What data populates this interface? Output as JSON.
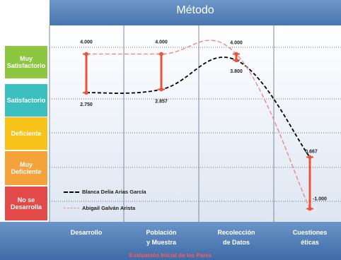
{
  "chart_data": {
    "type": "line",
    "title": "Método",
    "subtitle_bottom": "Evaluación Inicial de los Pares",
    "categories": [
      "Desarrollo",
      "Población\ny Muestra",
      "Recolección\nde Datos",
      "Cuestiones\néticas"
    ],
    "y_levels": [
      "Muy Satisfactorio",
      "Satisfactorio",
      "Deficiente",
      "Muy Deficiente",
      "No se Desarrolla"
    ],
    "ylim": [
      -1.4,
      4.7
    ],
    "series": [
      {
        "name": "Blanca Delia Arias García",
        "values": [
          2.75,
          2.857,
          3.8,
          0.667
        ]
      },
      {
        "name": "Abigail Galván Arista",
        "values": [
          4.0,
          4.0,
          4.0,
          -1.0
        ]
      }
    ],
    "data_labels": [
      {
        "category": "Desarrollo",
        "series": 1,
        "text": "4.000"
      },
      {
        "category": "Desarrollo",
        "series": 0,
        "text": "2.750"
      },
      {
        "category": "Población\ny Muestra",
        "series": 1,
        "text": "4.000"
      },
      {
        "category": "Población\ny Muestra",
        "series": 0,
        "text": "2.857"
      },
      {
        "category": "Recolección\nde Datos",
        "series": 1,
        "text": "4.000"
      },
      {
        "category": "Recolección\nde Datos",
        "series": 0,
        "text": "3.800"
      },
      {
        "category": "Cuestiones\néticas",
        "series": 0,
        "text": "0.667"
      },
      {
        "category": "Cuestiones\néticas",
        "series": 1,
        "text": "-1.000"
      }
    ],
    "grid": true
  },
  "colors": {
    "series0": "#000000",
    "series1": "#e88a8a",
    "diff_bar": "#e8553a",
    "muy_satisfactorio": "#8dc63f",
    "satisfactorio": "#3bbfbf",
    "deficiente": "#f7c21a",
    "muy_deficiente": "#f4a23a",
    "no_se_desarrolla": "#e34b4b"
  },
  "legend": [
    "Blanca Delia Arias García",
    "Abigail Galván Arista"
  ],
  "level_labels": {
    "muy_satisfactorio": "Muy Satisfactorio",
    "satisfactorio": "Satisfactorio",
    "deficiente": "Deficiente",
    "muy_deficiente": "Muy Deficiente",
    "no_se_desarrolla": "No se Desarrolla"
  }
}
